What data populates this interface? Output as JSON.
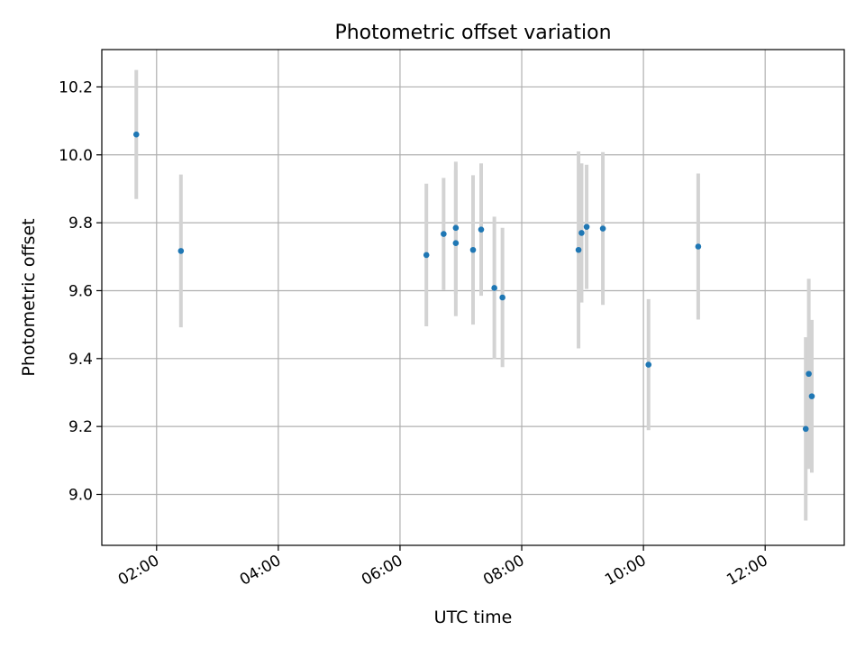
{
  "chart_data": {
    "type": "scatter",
    "title": "Photometric offset variation",
    "xlabel": "UTC time",
    "ylabel": "Photometric offset",
    "x_axis": "time",
    "xlim": [
      "01:06",
      "13:18"
    ],
    "ylim": [
      8.85,
      10.31
    ],
    "x_ticks": [
      "02:00",
      "04:00",
      "06:00",
      "08:00",
      "10:00",
      "12:00"
    ],
    "y_ticks": [
      9.0,
      9.2,
      9.4,
      9.6,
      9.8,
      10.0,
      10.2
    ],
    "grid": true,
    "legend": "none",
    "colors": {
      "marker": "#1f77b4",
      "errorbar": "#d3d3d3",
      "grid": "#b0b0b0"
    },
    "points": [
      {
        "t": "01:40",
        "y": 10.06,
        "err": 0.19
      },
      {
        "t": "02:24",
        "y": 9.717,
        "err": 0.225
      },
      {
        "t": "06:26",
        "y": 9.705,
        "err": 0.21
      },
      {
        "t": "06:43",
        "y": 9.767,
        "err": 0.165
      },
      {
        "t": "06:55",
        "y": 9.74,
        "err": 0.215
      },
      {
        "t": "06:55",
        "y": 9.785,
        "err": 0.195
      },
      {
        "t": "07:12",
        "y": 9.72,
        "err": 0.22
      },
      {
        "t": "07:20",
        "y": 9.78,
        "err": 0.195
      },
      {
        "t": "07:33",
        "y": 9.608,
        "err": 0.21
      },
      {
        "t": "07:41",
        "y": 9.58,
        "err": 0.205
      },
      {
        "t": "08:56",
        "y": 9.72,
        "err": 0.29
      },
      {
        "t": "08:59",
        "y": 9.77,
        "err": 0.205
      },
      {
        "t": "09:04",
        "y": 9.788,
        "err": 0.183
      },
      {
        "t": "09:20",
        "y": 9.783,
        "err": 0.225
      },
      {
        "t": "10:05",
        "y": 9.382,
        "err": 0.193
      },
      {
        "t": "10:54",
        "y": 9.73,
        "err": 0.215
      },
      {
        "t": "12:40",
        "y": 9.193,
        "err": 0.27
      },
      {
        "t": "12:43",
        "y": 9.355,
        "err": 0.28
      },
      {
        "t": "12:46",
        "y": 9.289,
        "err": 0.225
      }
    ]
  }
}
